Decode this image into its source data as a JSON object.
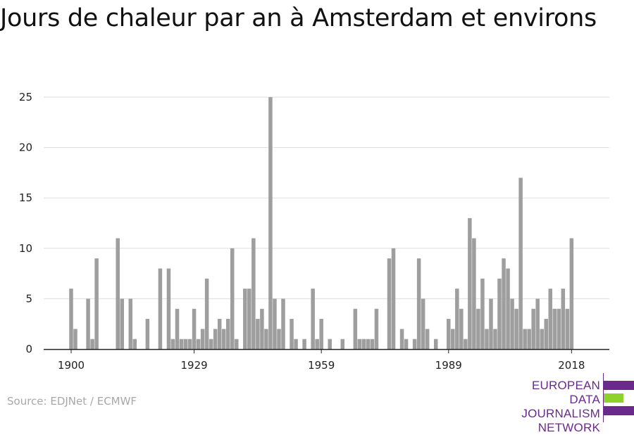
{
  "title": "Jours de chaleur par an à Amsterdam et environs",
  "source": "Source: EDJNet / ECMWF",
  "logo": {
    "lines": [
      "EUROPEAN",
      "DATA JOURNALISM",
      "NETWORK"
    ],
    "colors": [
      "#6a2a8c",
      "#8cd22a",
      "#6a2a8c"
    ]
  },
  "colors": {
    "bar": "#9e9e9e",
    "grid": "#dddddd",
    "axis": "#222222"
  },
  "chart_data": {
    "type": "bar",
    "title": "Jours de chaleur par an à Amsterdam et environs",
    "xlabel": "",
    "ylabel": "",
    "ylim": [
      0,
      25
    ],
    "yticks": [
      0,
      5,
      10,
      15,
      20,
      25
    ],
    "xticks": [
      1900,
      1929,
      1959,
      1989,
      2018
    ],
    "grid": true,
    "categories": [
      1900,
      1901,
      1902,
      1903,
      1904,
      1905,
      1906,
      1907,
      1908,
      1909,
      1910,
      1911,
      1912,
      1913,
      1914,
      1915,
      1916,
      1917,
      1918,
      1919,
      1920,
      1921,
      1922,
      1923,
      1924,
      1925,
      1926,
      1927,
      1928,
      1929,
      1930,
      1931,
      1932,
      1933,
      1934,
      1935,
      1936,
      1937,
      1938,
      1939,
      1940,
      1941,
      1942,
      1943,
      1944,
      1945,
      1946,
      1947,
      1948,
      1949,
      1950,
      1951,
      1952,
      1953,
      1954,
      1955,
      1956,
      1957,
      1958,
      1959,
      1960,
      1961,
      1962,
      1963,
      1964,
      1965,
      1966,
      1967,
      1968,
      1969,
      1970,
      1971,
      1972,
      1973,
      1974,
      1975,
      1976,
      1977,
      1978,
      1979,
      1980,
      1981,
      1982,
      1983,
      1984,
      1985,
      1986,
      1987,
      1988,
      1989,
      1990,
      1991,
      1992,
      1993,
      1994,
      1995,
      1996,
      1997,
      1998,
      1999,
      2000,
      2001,
      2002,
      2003,
      2004,
      2005,
      2006,
      2007,
      2008,
      2009,
      2010,
      2011,
      2012,
      2013,
      2014,
      2015,
      2016,
      2017,
      2018
    ],
    "values": [
      6,
      2,
      0,
      0,
      5,
      1,
      9,
      0,
      0,
      0,
      0,
      11,
      5,
      0,
      5,
      1,
      0,
      0,
      3,
      0,
      0,
      8,
      0,
      8,
      1,
      4,
      1,
      1,
      1,
      4,
      1,
      2,
      7,
      1,
      2,
      3,
      2,
      3,
      10,
      1,
      0,
      6,
      6,
      11,
      3,
      4,
      2,
      25,
      5,
      2,
      5,
      0,
      3,
      1,
      0,
      1,
      0,
      6,
      1,
      3,
      0,
      1,
      0,
      0,
      1,
      0,
      0,
      4,
      1,
      1,
      1,
      1,
      4,
      0,
      0,
      9,
      10,
      0,
      2,
      1,
      0,
      1,
      9,
      5,
      2,
      0,
      1,
      0,
      0,
      3,
      2,
      6,
      4,
      1,
      13,
      11,
      4,
      7,
      2,
      5,
      2,
      7,
      9,
      8,
      5,
      4,
      17,
      2,
      2,
      4,
      5,
      2,
      3,
      6,
      4,
      4,
      6,
      4,
      11
    ]
  }
}
